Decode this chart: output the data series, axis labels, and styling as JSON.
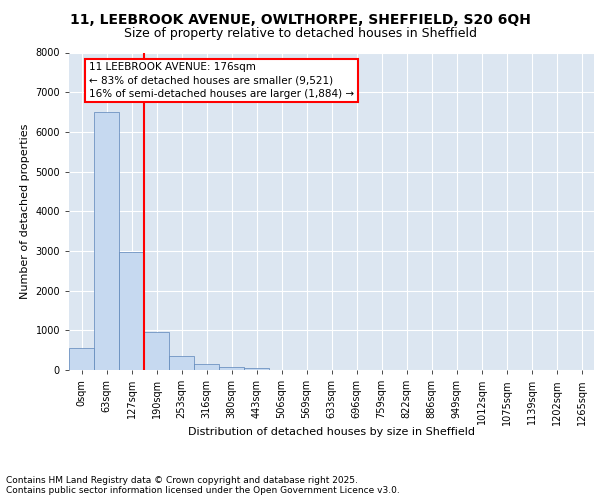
{
  "title_line1": "11, LEEBROOK AVENUE, OWLTHORPE, SHEFFIELD, S20 6QH",
  "title_line2": "Size of property relative to detached houses in Sheffield",
  "xlabel": "Distribution of detached houses by size in Sheffield",
  "ylabel": "Number of detached properties",
  "bar_labels": [
    "0sqm",
    "63sqm",
    "127sqm",
    "190sqm",
    "253sqm",
    "316sqm",
    "380sqm",
    "443sqm",
    "506sqm",
    "569sqm",
    "633sqm",
    "696sqm",
    "759sqm",
    "822sqm",
    "886sqm",
    "949sqm",
    "1012sqm",
    "1075sqm",
    "1139sqm",
    "1202sqm",
    "1265sqm"
  ],
  "bar_values": [
    550,
    6500,
    2980,
    970,
    360,
    150,
    75,
    40,
    0,
    0,
    0,
    0,
    0,
    0,
    0,
    0,
    0,
    0,
    0,
    0,
    0
  ],
  "bar_color": "#c6d9f0",
  "bar_edge_color": "#5b84b8",
  "background_color": "#dce6f1",
  "vline_color": "red",
  "annotation_text": "11 LEEBROOK AVENUE: 176sqm\n← 83% of detached houses are smaller (9,521)\n16% of semi-detached houses are larger (1,884) →",
  "annotation_box_color": "white",
  "annotation_box_edge_color": "red",
  "ylim": [
    0,
    8000
  ],
  "yticks": [
    0,
    1000,
    2000,
    3000,
    4000,
    5000,
    6000,
    7000,
    8000
  ],
  "footnote": "Contains HM Land Registry data © Crown copyright and database right 2025.\nContains public sector information licensed under the Open Government Licence v3.0.",
  "grid_color": "#ffffff",
  "title_fontsize": 10,
  "subtitle_fontsize": 9,
  "axis_label_fontsize": 8,
  "tick_fontsize": 7,
  "annotation_fontsize": 7.5,
  "footnote_fontsize": 6.5
}
